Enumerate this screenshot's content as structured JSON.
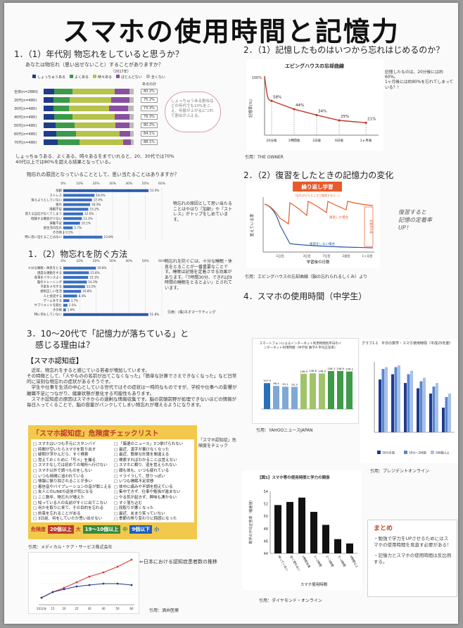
{
  "title": "スマホの使用時間と記憶力",
  "sec1": {
    "heading": "1．（1）年代別 物忘れをしていると思うか？",
    "question": "あなたは物忘れ（思い出せないこと）することがありますか？",
    "year": "（2017年）",
    "legend": [
      "しょっちゅうある",
      "よくある",
      "時々ある",
      "ほとんどない",
      "全くない"
    ],
    "legend_colors": [
      "#1f3b8c",
      "#3b9a4a",
      "#b7c24a",
      "#8a4fa0",
      "#bbbbbb"
    ],
    "ages": [
      "全体(n=2880)",
      "20代(n=480)",
      "30代(n=480)",
      "40代(n=480)",
      "50代(n=480)",
      "60代(n=480)",
      "70代(n=480)"
    ],
    "sums_label": "あるの計",
    "sums": [
      "80.2%",
      "75.2%",
      "73.3%",
      "79.3%",
      "80.2%",
      "84.1%",
      "88.1%"
    ],
    "note": "しょっちゅうある、よくある、時々あるをまでいれると、20、30代では70%\n40代以上では80%を超える結果となっている。",
    "bubble": "しょっちゅうある割合はどの年代でも10%をこえ、年齢が上がるにつれて割合がふえる。"
  },
  "cause": {
    "question": "物忘れの原因となっていることとして、思い当たることはありますか？",
    "axis": [
      "0%",
      "10%",
      "20%",
      "30%",
      "40%",
      "50%",
      "60%"
    ],
    "items": [
      "加齢",
      "ストレス",
      "覚えようとしていない",
      "疲れ",
      "睡眠不足",
      "覚える自信がなくてしまう",
      "経験する機会が少ない",
      "運動不足",
      "食生活の乱れ",
      "その他",
      "特に思い当たることはない"
    ],
    "values": [
      "51.9%",
      "19.0%",
      "17.4%",
      "16.3%",
      "15.2%",
      "12.0%",
      "11.3%",
      "10.1%",
      "5.7%",
      "0.5%",
      "23.8%"
    ],
    "comment": "物忘れの原因として思い当たることはやはり『加齢』や『ストレス』がトップをしめています。"
  },
  "prevent": {
    "heading": "1．（2）物忘れを防ぐ方法",
    "axis": [
      "0%",
      "10%",
      "20%",
      "30%",
      "40%",
      "50%",
      "60%"
    ],
    "items": [
      "十分な睡眠・休息をとる",
      "適度な運動をする",
      "食事をバランスよく",
      "脳のトレーニング",
      "予定をメモする",
      "規則正しい生活",
      "人と会話する",
      "ゲームをする",
      "サプリメントを飲む",
      "その他",
      "特に何もしていない"
    ],
    "values": [
      "19.8%",
      "15.6%",
      "15.1%",
      "14.3%",
      "13.2%",
      "10.8%",
      "8.4%",
      "3.7%",
      "2.5%",
      "1.6%",
      "51.8%"
    ],
    "comment": "物忘れを防ぐには、十分な睡眠・休息をとることが一番重要なことです。睡眠は記憶を定着させる効果があります。『7時間30分、できれば9時間の睡眠をとるとよい』とされています。",
    "source": "引用：(株)ネオマーケティング"
  },
  "sec2": {
    "heading": "2．（1）記憶したものはいつから忘れはじめるのか？",
    "chart_title": "エビングハウスの忘却曲線",
    "ylabel": "記憶率(%)",
    "points": [
      "58%",
      "44%",
      "34%",
      "25%",
      "21%"
    ],
    "xlabels": [
      "20分後",
      "1時間後",
      "1日後",
      "6日後",
      "1ヶ月後"
    ],
    "y100": "100%",
    "note": "記憶したものは、20分後には約60%。\n1ヶ月後には約80%を忘れてしまっている？！",
    "source": "引用：THE OWNER"
  },
  "sec2b": {
    "heading": "2．（2）復習をしたときの記憶力の変化",
    "banner": "繰り返し学習",
    "banner_sub": "（忘れかけたところで復習すると…）",
    "ylabel": "覚えている率",
    "xlabel": "学習後の日数",
    "label_review": "復習した場合",
    "label_noreview": "復習をしない場合",
    "label_retain": "定着率の差",
    "days": [
      "1日目",
      "3日目",
      "7日目",
      "2週目",
      "1ヶ月目"
    ],
    "handnote": "復習すると\n記憶の定着率\nUP！",
    "source": "引用：エビングハウスの忘却曲線（脳の忘れられるしくみ）より"
  },
  "sec4": {
    "heading": "4．スマホの使用時間（中学生）",
    "chart1_title": "スマートフォンによるインターネット利用時間別平日のインターネット利用時間（中学校 数学A 平均正答率）",
    "bars": [
      107.9,
      96.4,
      93.1,
      92.3,
      146.9,
      148.8,
      148.0,
      158.3,
      158.6,
      156.2
    ],
    "bar_labels": [
      "107.9",
      "96.4",
      "93.1",
      "92.3",
      "146.9",
      "148.8",
      "148.0",
      "158.3",
      "158.6",
      "156.2"
    ],
    "bar_colors": [
      "#2a6fb8",
      "#7fa8d6",
      "#7fa8d6",
      "#7fa8d6",
      "#9fc46a",
      "#9fc46a",
      "#9fc46a",
      "#3f9a4a",
      "#3f9a4a",
      "#3f9a4a"
    ],
    "source1": "引用：YAHOOニュースJAPAN",
    "chart2_title": "グラフ1-1　平日の数学・スマホ使用時間（平成25年度）",
    "chart2_legend": [
      "30分未満",
      "30分〜2時間",
      "2時間以上"
    ],
    "source2": "引用：プレジデントオンライン",
    "chart3_title": "【図1】スマホ等の使用時間と学力の関係",
    "chart3_ylabel": "数学の平均正答率（偏差値）",
    "chart3_yticks": [
      "44",
      "46",
      "48",
      "50",
      "52",
      "54"
    ],
    "chart3_values": [
      51.8,
      52.3,
      53.0,
      50.7,
      48.6,
      46.3,
      45.6
    ],
    "chart3_x": [
      "持っていない",
      "全く使わない",
      "1時間未満",
      "1〜2時間",
      "2〜3時間",
      "3〜4時間",
      "4時間以上"
    ],
    "chart3_xlabel": "スマホ使用時間",
    "source3": "引用：ダイヤモンド・オンライン"
  },
  "sec3": {
    "heading": "3．10〜20代で「記憶力が落ちている」と\n　感じる理由は？",
    "sub": "【スマホ認知症】",
    "body": "　近年、物忘れをすると感じている若者が増加しています。\nその特徴として、「人やものの名前が出てこなくなった」「簡単な計算でさえできなくなった」など日常的に深刻な物忘れの症状があるそうです。\n　学生や仕事を生活の中心としている世代ではその症状は一時的なものですが、学校や仕事への影響が離職不足につながり、健康状態が悪化する可能性もあります。\n　スマホ認知症の原因はスマホからの過剰な情報収集です。脳の前頭前野が処理できないほどの情報が毎日入ってくることで、脳の容量がパンクしてしまい物忘れが増えるようになります。",
    "check_title": "「スマホ認知症」危険度チェックリスト",
    "check_left": [
      "スマホはいつも手元にスタンバイ",
      "時間が空いたらスマホを取り出す",
      "疑問が浮かんだら、すぐ検索",
      "覚えておくために「写メ」を撮る",
      "スマホなしでは初めての場所へ行けない",
      "スマホ以外で調べものをしない",
      "いつも時間に追われている",
      "情報に振り回されることが多い",
      "着信音やバイブレーションの音が聞こえる",
      "友人とのLINEの返信が気になる",
      "ここ数年、物忘れが増えた",
      "知っている人の名前がすぐに出てこない",
      "何かを取りに来て、その目的を忘れる",
      "約束を忘れることがある",
      "3日前、何をしていたか思い出せない"
    ],
    "check_right": [
      "「厳選のニュース」3つ挙げられない",
      "最近、漢字が書けなくなった",
      "最近、簡単な計算を間違える",
      "検索すればわかることは覚えない",
      "スマホに頼り、道を覚えられない",
      "顔も体も、いつも疲れている",
      "イライラして、怒りっぽい",
      "いつも睡眠不足状態",
      "体中に痛みや不調を抱えている",
      "集中できず、仕事や勉強が進まない",
      "やる気が起きず、興味も湧かない",
      "すぐ落ち込む",
      "段取りが悪くなった",
      "最近、あまり笑っていない",
      "季節の移り変わりに鈍感になった"
    ],
    "check_side": "「スマホ認知症」危険度をチェック",
    "risk_label": "危険度",
    "risk_big": "20個以上",
    "risk_big_mark": "大",
    "risk_mid": "19〜10個以上",
    "risk_mid_mark": "中",
    "risk_small": "9個以下",
    "risk_small_mark": "小",
    "source": "引用：メディカル・ケア・サービス株式会社",
    "trend_note": "⇐日本における認知症患者数の推移",
    "trend_source": "引用：酒井医療",
    "trend_x": [
      "2012年",
      "15",
      "20",
      "25",
      "30",
      "40",
      "50",
      "60"
    ]
  },
  "summary": {
    "title": "まとめ",
    "items": [
      "勉強で学力をUPさせるためにはスマホの使用時間を見直す必要がある！",
      "記憶力とスマホの使用時間は反比例する。"
    ]
  }
}
